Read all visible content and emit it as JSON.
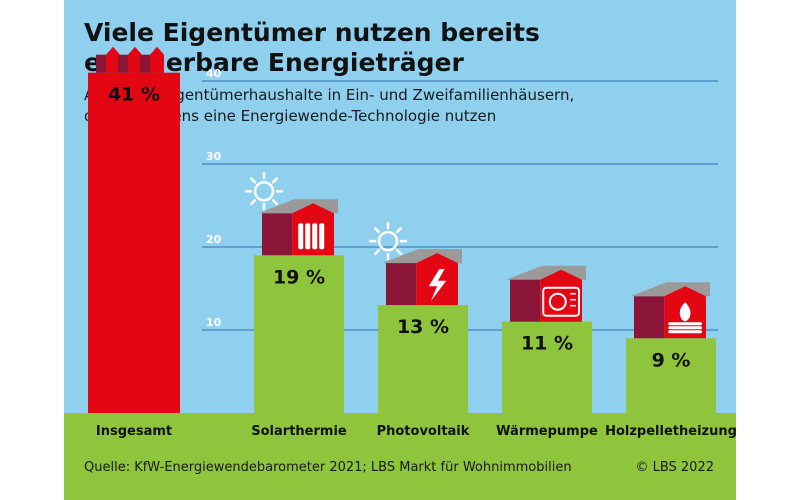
{
  "header": {
    "title_line1": "Viele Eigentümer nutzen bereits",
    "title_line2": "erneuerbare Energieträger",
    "subtitle_line1": "Anteil der Eigentümerhaushalte in Ein- und Zweifamilienhäusern,",
    "subtitle_line2": "die mindestens eine Energiewende-Technologie nutzen"
  },
  "footer": {
    "source": "Quelle: KfW-Energiewendebarometer 2021; LBS Markt für Wohnimmobilien",
    "copyright": "© LBS 2022"
  },
  "colors": {
    "sky": "#8fd0ee",
    "ground": "#8fc43d",
    "total_bar": "#e30613",
    "bar": "#8fc43d",
    "house_red": "#e30613",
    "house_dark": "#8a1538",
    "roof": "#9a9a9a",
    "gridline": "#2e6fb5"
  },
  "chart_data": {
    "type": "bar",
    "categories": [
      "Insgesamt",
      "Solarthermie",
      "Photovoltaik",
      "Wärmepumpe",
      "Holzpelletheizung"
    ],
    "values": [
      41,
      19,
      13,
      11,
      9
    ],
    "value_labels": [
      "41 %",
      "19 %",
      "13 %",
      "11 %",
      "9 %"
    ],
    "icons": [
      "houses-icon",
      "solar-thermal-house-icon",
      "photovoltaic-house-icon",
      "heat-pump-house-icon",
      "wood-pellet-house-icon"
    ],
    "yticks": [
      10,
      20,
      30,
      40
    ],
    "ylim": [
      0,
      41
    ],
    "unit": "%",
    "grid": true,
    "legend": "none"
  }
}
